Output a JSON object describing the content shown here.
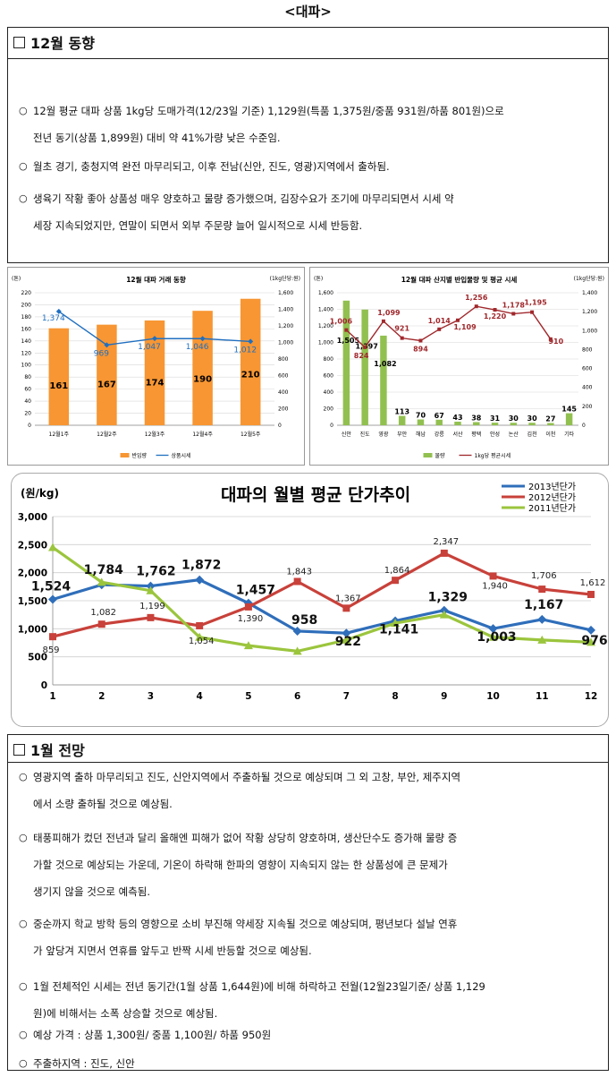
{
  "doc_title": "<대파>",
  "section1": {
    "heading": "12월 동향",
    "bullets": [
      [
        "12월 평균 대파 상품 1kg당 도매가격(12/23일 기준) 1,129원(특품 1,375원/중품 931원/하품 801원)으로",
        "전년 동기(상품 1,899원) 대비 약 41%가량 낮은 수준임."
      ],
      [
        "월초 경기, 충청지역 완전 마무리되고, 이후 전남(신안, 진도, 영광)지역에서 출하됨."
      ],
      [
        "생육기 작황 좋아 상품성 매우 양호하고 물량 증가했으며, 김장수요가 조기에 마무리되면서 시세 약",
        "세장 지속되었지만, 연말이 되면서 외부 주문량 늘어 일시적으로 시세 반등함."
      ]
    ]
  },
  "chart_data": [
    {
      "type": "bar",
      "title": "12월 대파 거래 동향",
      "unit_left": "(톤)",
      "unit_right": "(1kg단당:원)",
      "categories": [
        "12월1주",
        "12월2주",
        "12월3주",
        "12월4주",
        "12월5주"
      ],
      "series": [
        {
          "name": "반입량",
          "type": "bar",
          "axis": "left",
          "color": "#F79633",
          "values": [
            161,
            167,
            174,
            190,
            210
          ]
        },
        {
          "name": "상품시세",
          "type": "line",
          "axis": "right",
          "color": "#1F6FC0",
          "values": [
            1374,
            969,
            1047,
            1046,
            1012
          ]
        }
      ],
      "ylim_left": [
        0,
        220
      ],
      "yticks_left": [
        0,
        20,
        40,
        60,
        80,
        100,
        120,
        140,
        160,
        180,
        200,
        220
      ],
      "ylim_right": [
        0,
        1600
      ],
      "yticks_right": [
        0,
        200,
        400,
        600,
        800,
        1000,
        1200,
        1400,
        1600
      ],
      "legend_position": "bottom"
    },
    {
      "type": "bar",
      "title": "12월 대파 산지별 반입물량 및 평균 시세",
      "unit_left": "(톤)",
      "unit_right": "(1kg단당:원)",
      "categories": [
        "신안",
        "진도",
        "영광",
        "부안",
        "해남",
        "강릉",
        "서산",
        "평택",
        "안성",
        "논산",
        "김천",
        "이천",
        "기타"
      ],
      "series": [
        {
          "name": "물량",
          "type": "bar",
          "axis": "left",
          "color": "#92C050",
          "values": [
            1505,
            1397,
            1082,
            113,
            70,
            67,
            43,
            38,
            31,
            30,
            30,
            27,
            145
          ]
        },
        {
          "name": "1kg당 평균시세",
          "type": "line",
          "axis": "right",
          "color": "#A0282C",
          "values": [
            1006,
            824,
            1099,
            921,
            894,
            1014,
            1109,
            1256,
            1220,
            1178,
            1195,
            910,
            null
          ]
        }
      ],
      "ylim_left": [
        0,
        1600
      ],
      "yticks_left": [
        0,
        200,
        400,
        600,
        800,
        1000,
        1200,
        1400,
        1600
      ],
      "ylim_right": [
        0,
        1400
      ],
      "yticks_right": [
        0,
        200,
        400,
        600,
        800,
        1000,
        1200,
        1400
      ],
      "legend_position": "bottom"
    },
    {
      "type": "line",
      "title": "대파의 월별 평균 단가추이",
      "ylabel": "(원/kg)",
      "x": [
        1,
        2,
        3,
        4,
        5,
        6,
        7,
        8,
        9,
        10,
        11,
        12
      ],
      "ylim": [
        0,
        3000
      ],
      "yticks": [
        0,
        500,
        1000,
        1500,
        2000,
        2500,
        3000
      ],
      "series": [
        {
          "name": "2013년단가",
          "color": "#2F6EBA",
          "values": [
            1524,
            1784,
            1762,
            1872,
            1457,
            958,
            922,
            1141,
            1329,
            1003,
            1167,
            976
          ]
        },
        {
          "name": "2012년단가",
          "color": "#C8413A",
          "values": [
            859,
            1082,
            1199,
            1054,
            1390,
            1843,
            1367,
            1864,
            2347,
            1940,
            1706,
            1612
          ]
        },
        {
          "name": "2011년단가",
          "color": "#9BC53D",
          "values": [
            2450,
            1830,
            1680,
            850,
            700,
            600,
            800,
            1100,
            1250,
            850,
            800,
            760
          ]
        }
      ],
      "grid": true,
      "legend_position": "top-right"
    }
  ],
  "section2": {
    "heading": "1월 전망",
    "bullets": [
      [
        "영광지역 출하 마무리되고 진도, 신안지역에서 주출하될 것으로 예상되며 그 외 고창, 부안, 제주지역",
        "에서 소량 출하될 것으로 예상됨."
      ],
      [
        "태풍피해가 컸던 전년과 달리 올해엔 피해가 없어 작황 상당히 양호하며, 생산단수도 증가해 물량 증",
        "가할 것으로 예상되는 가운데, 기온이 하락해 한파의 영향이 지속되지 않는 한 상품성에 큰 문제가",
        "생기지 않을 것으로 예측됨."
      ],
      [
        "중순까지 학교 방학 등의 영향으로 소비 부진해 약세장 지속될 것으로 예상되며, 평년보다 설날 연휴",
        "가 앞당겨 지면서 연휴를 앞두고 반짝 시세 반등할 것으로 예상됨."
      ],
      [
        "1월 전체적인 시세는 전년 동기간(1월 상품 1,644원)에 비해 하락하고 전월(12월23일기준/ 상품 1,129",
        "원)에 비해서는 소폭 상승할 것으로 예상됨."
      ],
      [
        "예상 가격 : 상품 1,300원/ 중품 1,100원/ 하품 950원"
      ],
      [
        "주출하지역 : 진도, 신안"
      ]
    ]
  }
}
